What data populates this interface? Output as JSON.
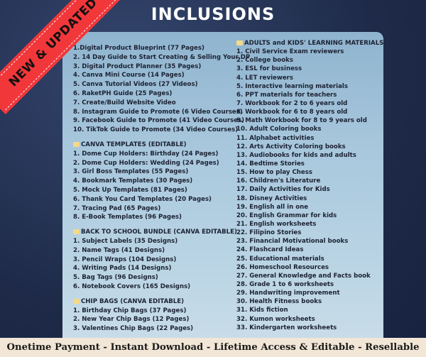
{
  "title": "INCLUSIONS",
  "ribbon": "NEW & UPDATED",
  "footer": "Onetime Payment - Instant Download - Lifetime Access & Editable - Resellable",
  "colors": {
    "background": "#1f2c4c",
    "panel": "#a9c8dd",
    "ribbon": "#f2373a",
    "footer": "#f2e6d6"
  },
  "left": {
    "main_items": [
      "1.Digital Product Blueprint (77 Pages)",
      "2. 14 Day Guide to Start Creating & Selling Your DP",
      "3. Digital Product Planner (35 Pages)",
      "4. Canva Mini Course (14 Pages)",
      "5. Canva Tutorial Videos (27 Videos)",
      "6. RaketPH Guide (25 Pages)",
      "7. Create/Build Website Video",
      "8. Instagram Guide to Promote (6 Video Courses)",
      "9. Facebook Guide to Promote (41 Video Courses)",
      "10. TikTok Guide to Promote (34 Video Courses)"
    ],
    "sections": [
      {
        "heading": "CANVA TEMPLATES (EDITABLE)",
        "items": [
          "1. Dome Cup Holders: Birthday (24 Pages)",
          "2. Dome Cup Holders: Wedding (24 Pages)",
          "3. Girl Boss Templates (55 Pages)",
          "4. Bookmark Templates (30 Pages)",
          "5. Mock Up Templates (81 Pages)",
          "6. Thank You Card Templates (20 Pages)",
          "7. Tracing Pad (65 Pages)",
          "8. E-Book Templates (96 Pages)"
        ]
      },
      {
        "heading": "BACK TO SCHOOL BUNDLE (CANVA EDITABLE)",
        "items": [
          "1. Subject Labels (35 Designs)",
          "2. Name Tags (41 Designs)",
          "3. Pencil Wraps (104 Designs)",
          "4. Writing Pads (14 Designs)",
          "5. Bag Tags (96 Designs)",
          "6. Notebook Covers (165 Designs)"
        ]
      },
      {
        "heading": "CHIP BAGS (CANVA EDITABLE)",
        "items": [
          "1. Birthday Chip Bags (37 Pages)",
          "2. New Year Chip Bags (12 Pages)",
          "3. Valentines Chip Bags (22 Pages)"
        ]
      }
    ]
  },
  "right": {
    "heading": "ADULTS and KIDS' LEARNING MATERIALS",
    "items": [
      "1. Civil Service Exam reviewers",
      "2. College books",
      "3. ESL for business",
      "4. LET reviewers",
      "5. Interactive learning materials",
      "6. PPT materials for teachers",
      "7. Workbook for 2 to 6 years old",
      "8. Workbook for 6 to 8 years old",
      "9. Math Workbook for 8 to 9 years old",
      "10. Adult Coloring books",
      "11. Alphabet activities",
      "12. Arts Activity Coloring books",
      "13. Audiobooks for kids and adults",
      "14. Bedtime Stories",
      "15. How to play Chess",
      "16. Children's Literature",
      "17. Daily Activities for Kids",
      "18. Disney Activities",
      "19. English all in one",
      "20. English Grammar for kids",
      "21. English worksheets",
      "22. Filipino Stories",
      "23. Financial Motivational books",
      "24. Flashcard Ideas",
      "25. Educational materials",
      "26. Homeschool Resources",
      "27. General Knowledge and Facts book",
      "28. Grade 1 to 6 worksheets",
      "29. Handwriting improvement",
      "30. Health Fitness books",
      "31. Kids fiction",
      "32. Kumon worksheets",
      "33. Kindergarten worksheets"
    ]
  }
}
